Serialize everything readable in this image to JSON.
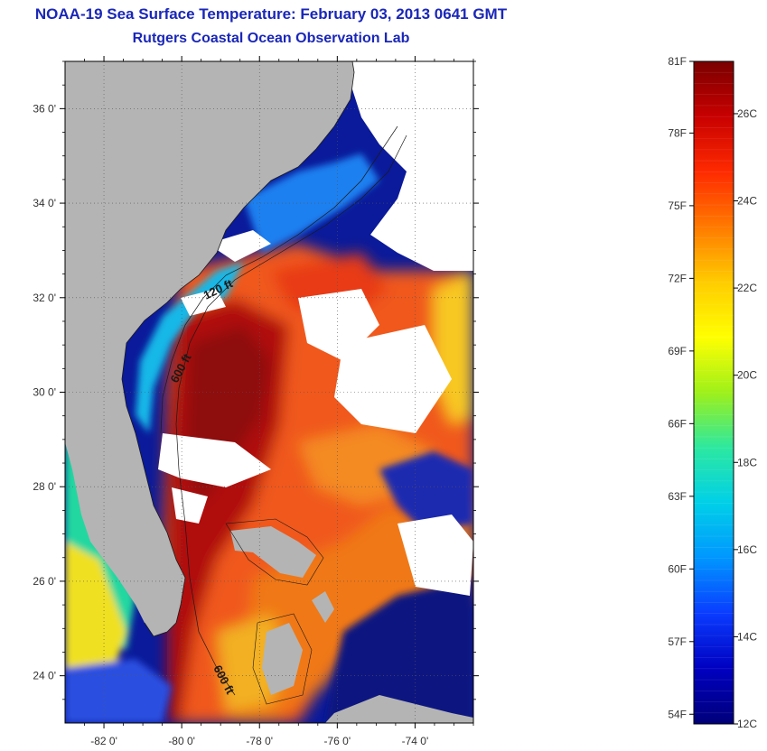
{
  "title": {
    "line1": "NOAA-19 Sea Surface Temperature:  February 03, 2013 0641 GMT",
    "line2": "Rutgers Coastal Ocean Observation Lab"
  },
  "map": {
    "lon_range": [
      -83.0,
      -72.5
    ],
    "lat_range": [
      23.0,
      37.0
    ],
    "lat_ticks": [
      {
        "value": 36,
        "label": "36 0'"
      },
      {
        "value": 34,
        "label": "34 0'"
      },
      {
        "value": 32,
        "label": "32 0'"
      },
      {
        "value": 30,
        "label": "30 0'"
      },
      {
        "value": 28,
        "label": "28 0'"
      },
      {
        "value": 26,
        "label": "26 0'"
      },
      {
        "value": 24,
        "label": "24 0'"
      }
    ],
    "lon_ticks": [
      {
        "value": -82,
        "label": "-82 0'"
      },
      {
        "value": -80,
        "label": "-80 0'"
      },
      {
        "value": -78,
        "label": "-78 0'"
      },
      {
        "value": -76,
        "label": "-76 0'"
      },
      {
        "value": -74,
        "label": "-74 0'"
      }
    ],
    "contour_labels": [
      {
        "text": "120 ft"
      },
      {
        "text": "600 ft"
      },
      {
        "text": "600 ft"
      }
    ],
    "colors": {
      "land": "#b4b4b4",
      "cloud": "#ffffff",
      "deep_warm": "#a80e0e",
      "warm": "#e8260c",
      "orange": "#f46a14",
      "cold": "#0a1a9a"
    }
  },
  "colorbar": {
    "range_c": [
      12,
      27.2
    ],
    "fahrenheit_labels": [
      {
        "value": 81,
        "label": "81F"
      },
      {
        "value": 78,
        "label": "78F"
      },
      {
        "value": 75,
        "label": "75F"
      },
      {
        "value": 72,
        "label": "72F"
      },
      {
        "value": 69,
        "label": "69F"
      },
      {
        "value": 66,
        "label": "66F"
      },
      {
        "value": 63,
        "label": "63F"
      },
      {
        "value": 60,
        "label": "60F"
      },
      {
        "value": 57,
        "label": "57F"
      },
      {
        "value": 54,
        "label": "54F"
      }
    ],
    "celsius_labels": [
      {
        "value": 26,
        "label": "26C"
      },
      {
        "value": 24,
        "label": "24C"
      },
      {
        "value": 22,
        "label": "22C"
      },
      {
        "value": 20,
        "label": "20C"
      },
      {
        "value": 18,
        "label": "18C"
      },
      {
        "value": 16,
        "label": "16C"
      },
      {
        "value": 14,
        "label": "14C"
      },
      {
        "value": 12,
        "label": "12C"
      }
    ],
    "gradient_stops": [
      "#7a0000",
      "#c80000",
      "#ff2a00",
      "#ff7a00",
      "#ffcc00",
      "#ffff00",
      "#9ef01a",
      "#2ce8a0",
      "#00d0e8",
      "#0096ff",
      "#0a3cff",
      "#0000c0",
      "#00007a"
    ]
  }
}
